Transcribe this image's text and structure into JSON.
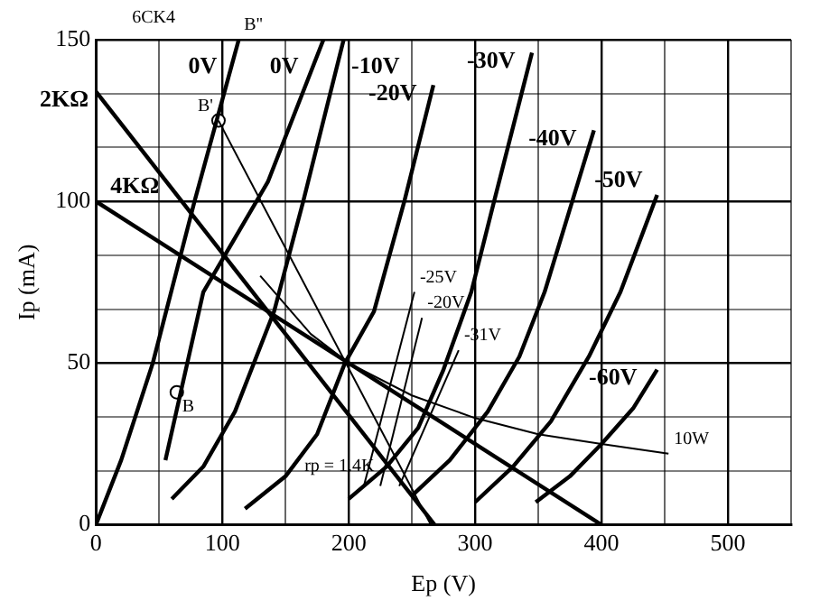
{
  "chart_data": {
    "type": "line",
    "xlabel": "Ep (V)",
    "ylabel": "Ip (mA)",
    "xlim": [
      0,
      550
    ],
    "ylim": [
      0,
      150
    ],
    "xticks": [
      0,
      {
        "value": 50,
        "label": null
      },
      100,
      {
        "value": 150,
        "label": null
      },
      200,
      {
        "value": 250,
        "label": null
      },
      300,
      {
        "value": 350,
        "label": null
      },
      400,
      {
        "value": 450,
        "label": null
      },
      500,
      {
        "value": 550,
        "label": null
      }
    ],
    "yticks": [
      0,
      {
        "value": 16.7,
        "label": null
      },
      {
        "value": 33.3,
        "label": null
      },
      50,
      {
        "value": 66.7,
        "label": null
      },
      {
        "value": 83.3,
        "label": null
      },
      100,
      {
        "value": 116.7,
        "label": null
      },
      {
        "value": 133.3,
        "label": null
      },
      150
    ],
    "grid": true,
    "legend": false,
    "marker": "none",
    "line_style": "solid",
    "series": [
      {
        "name": "0V",
        "color": "#000000",
        "x": [
          0,
          20,
          45,
          78,
          113
        ],
        "values": [
          0,
          20,
          50,
          100,
          150
        ]
      },
      {
        "name": "-10V",
        "color": "#000000",
        "x": [
          60,
          85,
          110,
          141,
          164,
          196
        ],
        "values": [
          8,
          18,
          35,
          66,
          100,
          150
        ]
      },
      {
        "name": "-20V",
        "color": "#000000",
        "x": [
          118,
          150,
          175,
          197,
          220,
          244,
          267
        ],
        "values": [
          5,
          15,
          28,
          50,
          66,
          100,
          136
        ]
      },
      {
        "name": "-30V",
        "color": "#000000",
        "x": [
          200,
          230,
          255,
          275,
          297,
          315,
          345
        ],
        "values": [
          8,
          18,
          30,
          48,
          72,
          100,
          146
        ]
      },
      {
        "name": "-40V",
        "color": "#000000",
        "x": [
          250,
          280,
          310,
          335,
          355,
          394
        ],
        "values": [
          9,
          20,
          35,
          52,
          72,
          122
        ]
      },
      {
        "name": "-50V",
        "color": "#000000",
        "x": [
          300,
          330,
          360,
          390,
          415,
          444
        ],
        "values": [
          7,
          18,
          32,
          52,
          72,
          102
        ]
      },
      {
        "name": "-60V",
        "color": "#000000",
        "x": [
          348,
          375,
          400,
          425,
          444
        ],
        "values": [
          7,
          15,
          25,
          36,
          48
        ]
      },
      {
        "name": "0V",
        "color": "#000000",
        "x": [
          55,
          85,
          136,
          180
        ],
        "values": [
          20,
          72,
          106,
          150
        ]
      },
      {
        "name": "2KΩ",
        "color": "#000000",
        "x": [
          0,
          268
        ],
        "values": [
          134,
          0
        ]
      },
      {
        "name": "4KΩ",
        "color": "#000000",
        "x": [
          0,
          400
        ],
        "values": [
          100,
          0
        ]
      },
      {
        "color": "#000000",
        "x": [
          97,
          265
        ],
        "values": [
          125,
          0
        ]
      },
      {
        "color": "#000000",
        "x": [
          130,
          170,
          200,
          250,
          300,
          350,
          400,
          453
        ],
        "values": [
          77,
          59,
          50,
          40,
          33,
          28,
          25,
          22
        ]
      },
      {
        "color": "#000000",
        "x": [
          212,
          252
        ],
        "values": [
          12,
          72
        ]
      },
      {
        "color": "#000000",
        "x": [
          225,
          258
        ],
        "values": [
          12,
          64
        ]
      },
      {
        "color": "#000000",
        "x": [
          240,
          287
        ],
        "values": [
          12,
          54
        ]
      },
      {
        "type": "scatter",
        "marker": "circle",
        "color": "#000000",
        "x": [
          64,
          97
        ],
        "values": [
          41,
          125
        ]
      }
    ],
    "annotations": [
      "6CK4",
      "rp = 1.4K",
      {
        "text": "B''",
        "x": 113,
        "y": 150
      },
      {
        "text": "B'",
        "x": 97,
        "y": 125
      },
      {
        "text": "B",
        "x": 64,
        "y": 41
      },
      {
        "text": "-25V",
        "x": 252,
        "y": 72
      },
      {
        "text": "-20V",
        "x": 258,
        "y": 64
      },
      {
        "text": "-31V",
        "x": 287,
        "y": 54
      },
      {
        "text": "10W",
        "x": 453,
        "y": 22
      }
    ]
  }
}
